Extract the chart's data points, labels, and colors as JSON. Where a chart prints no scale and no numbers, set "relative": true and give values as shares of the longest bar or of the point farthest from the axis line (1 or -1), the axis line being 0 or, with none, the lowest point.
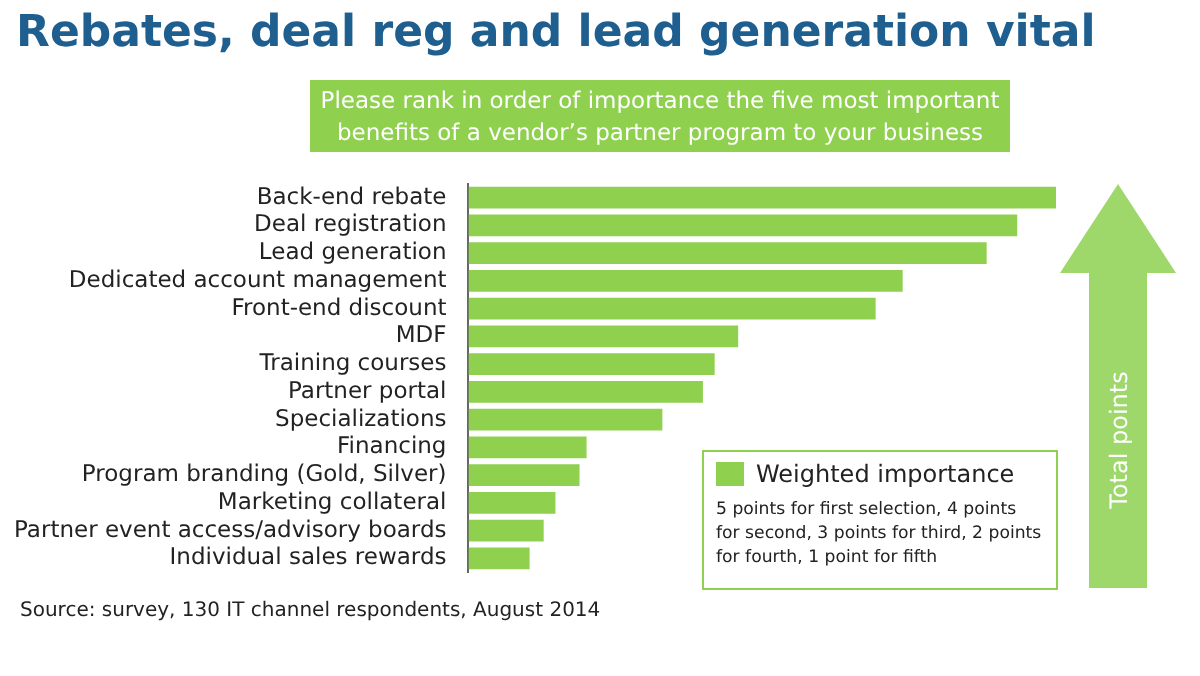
{
  "chart_data": {
    "type": "bar",
    "orientation": "horizontal",
    "relative": true,
    "title": "Rebates, deal reg and lead generation vital",
    "subtitle": "Please rank in order of importance the five most important benefits of a vendor’s partner program to your business",
    "categories": [
      "Back-end rebate",
      "Deal registration",
      "Lead generation",
      "Dedicated account management",
      "Front-end discount",
      "MDF",
      "Training courses",
      "Partner portal",
      "Specializations",
      "Financing",
      "Program branding (Gold, Silver)",
      "Marketing collateral",
      "Partner event access/advisory boards",
      "Individual sales rewards"
    ],
    "series": [
      {
        "name": "Weighted importance",
        "color": "#8fd14f",
        "values": [
          1,
          0.934,
          0.882,
          0.739,
          0.693,
          0.459,
          0.419,
          0.399,
          0.33,
          0.201,
          0.189,
          0.148,
          0.128,
          0.104
        ]
      }
    ],
    "legend": "bottom right",
    "annotations": [
      "Total points",
      "5 points for first selection, 4 points for second, 3 points for third, 2 points for fourth, 1 point for fifth",
      "Source: survey, 130 IT channel respondents, August 2014"
    ]
  }
}
